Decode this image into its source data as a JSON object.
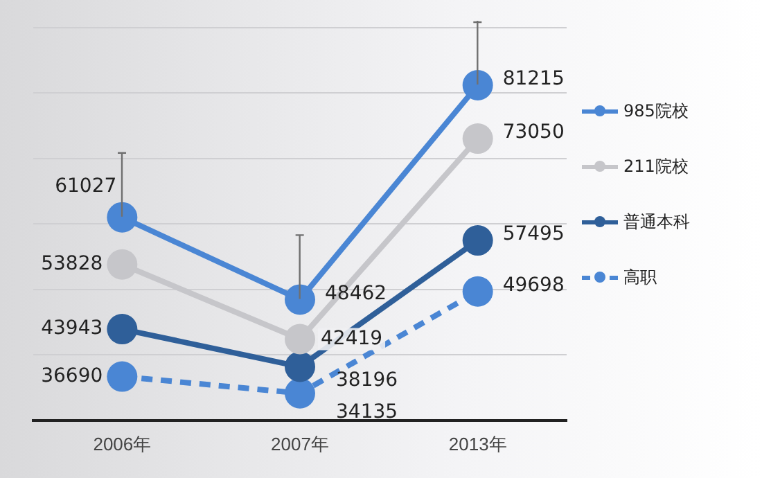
{
  "chart_data": {
    "type": "line",
    "categories": [
      "2006年",
      "2007年",
      "2013年"
    ],
    "series": [
      {
        "name": "985院校",
        "color": "#4a86d4",
        "values": [
          61027,
          48462,
          81215
        ]
      },
      {
        "name": "211院校",
        "color": "#c6c6ca",
        "values": [
          53828,
          42419,
          73050
        ]
      },
      {
        "name": "普通本科",
        "color": "#2f5f99",
        "values": [
          43943,
          38196,
          57495
        ]
      },
      {
        "name": "高职",
        "color": "#4a86d4",
        "values": [
          36690,
          34135,
          49698
        ],
        "line_style": "dashed"
      }
    ],
    "ylim": [
      30000,
      90000
    ],
    "yticks": [
      {
        "value": 30000,
        "label": null
      },
      {
        "value": 40000,
        "label": null
      },
      {
        "value": 50000,
        "label": null
      },
      {
        "value": 60000,
        "label": null
      },
      {
        "value": 70000,
        "label": null
      },
      {
        "value": 80000,
        "label": null
      },
      {
        "value": 90000,
        "label": null
      }
    ],
    "tick_labels": "x",
    "grid": "y",
    "legend": "right",
    "marker": "circle",
    "data_labels": true
  }
}
